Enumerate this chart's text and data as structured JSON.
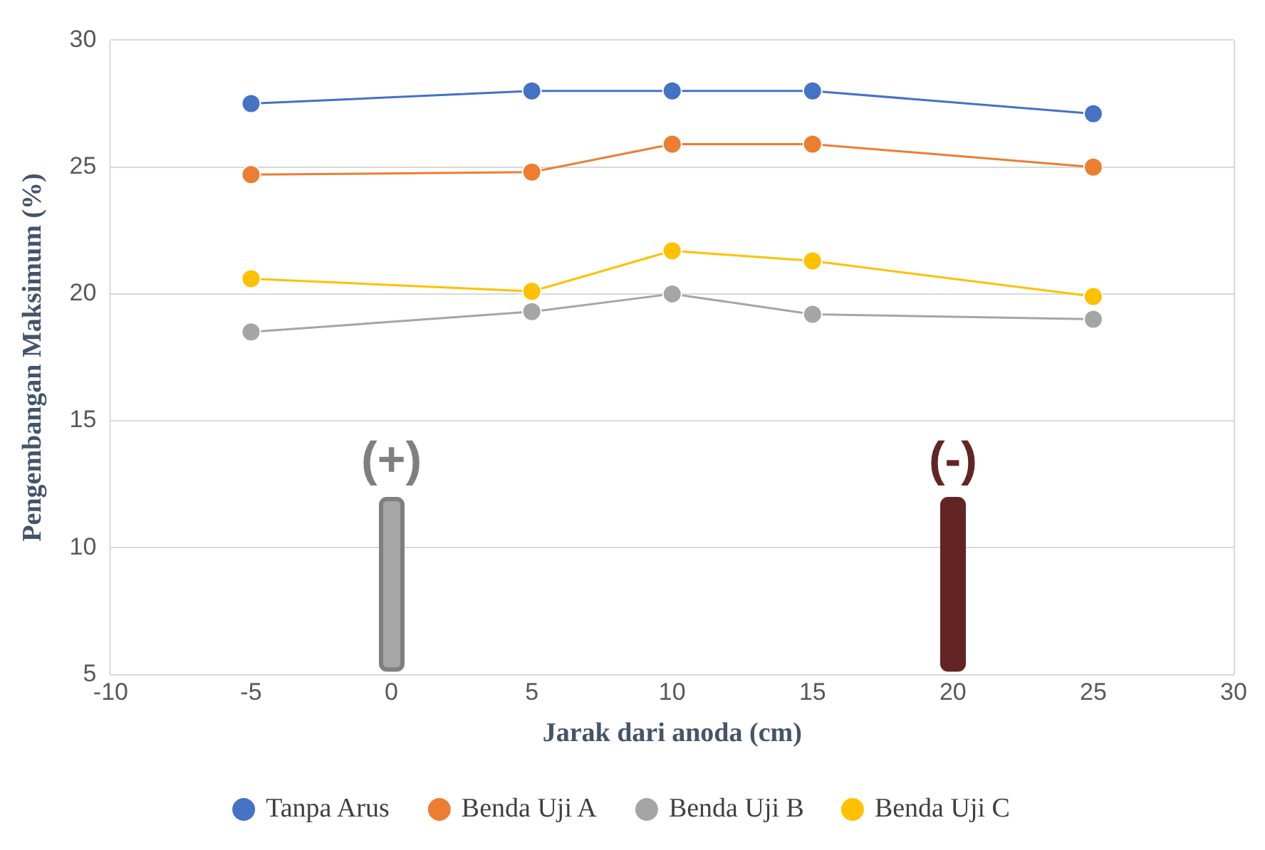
{
  "chart_data": {
    "type": "line",
    "xlabel": "Jarak dari anoda (cm)",
    "ylabel": "Pengembangan Maksimum (%)",
    "x": [
      -5,
      5,
      10,
      15,
      25
    ],
    "series": [
      {
        "name": "Tanpa Arus",
        "color": "#4472c4",
        "values": [
          27.5,
          28.0,
          28.0,
          28.0,
          27.1
        ]
      },
      {
        "name": "Benda Uji A",
        "color": "#ed7d31",
        "values": [
          24.7,
          24.8,
          25.9,
          25.9,
          25.0
        ]
      },
      {
        "name": "Benda Uji B",
        "color": "#a5a5a5",
        "values": [
          18.5,
          19.3,
          20.0,
          19.2,
          19.0
        ]
      },
      {
        "name": "Benda Uji C",
        "color": "#ffc000",
        "values": [
          20.6,
          20.1,
          21.7,
          21.3,
          19.9
        ]
      }
    ],
    "xlim": [
      -10,
      30
    ],
    "xticks": [
      -10,
      -5,
      0,
      5,
      10,
      15,
      20,
      25,
      30
    ],
    "ylim": [
      5,
      30
    ],
    "yticks": [
      5,
      10,
      15,
      20,
      25,
      30
    ],
    "annotations": [
      "(+)",
      "(-)"
    ],
    "grid": "y",
    "legend": "bottom",
    "marker": "circle",
    "line_style": "solid"
  }
}
